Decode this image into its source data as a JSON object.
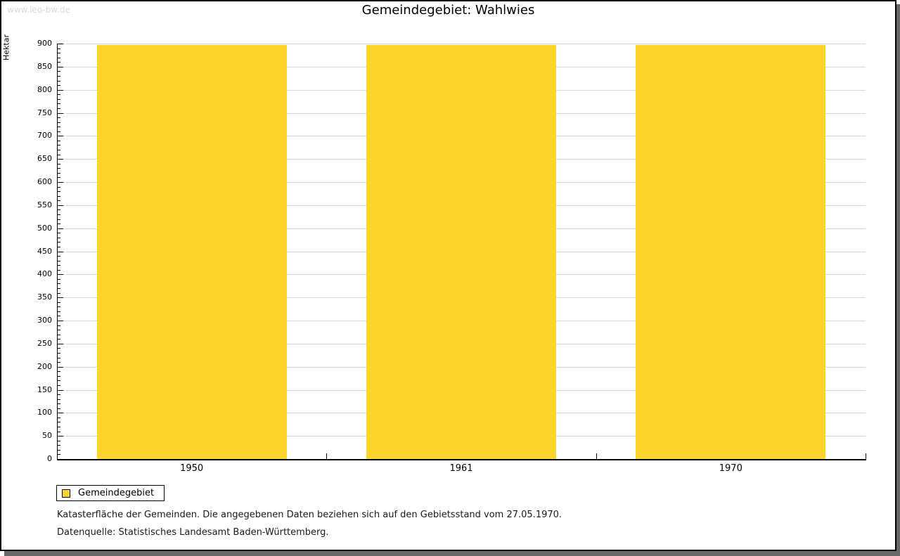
{
  "page": {
    "watermark": "www.leo-bw.de"
  },
  "chart_data": {
    "type": "bar",
    "title": "Gemeindegebiet: Wahlwies",
    "categories": [
      "1950",
      "1961",
      "1970"
    ],
    "series": [
      {
        "name": "Gemeindegebiet",
        "values": [
          897,
          897,
          897
        ]
      }
    ],
    "xlabel": "",
    "ylabel": "Hektar",
    "ylim": [
      0,
      900
    ],
    "ytick_major": 50,
    "ytick_minor": 10,
    "grid": true,
    "legend_position": "bottom-left"
  },
  "legend": {
    "label": "Gemeindegebiet"
  },
  "footnotes": {
    "line1": "Katasterfläche der Gemeinden. Die angegebenen Daten beziehen sich auf den Gebietsstand vom 27.05.1970.",
    "line2": "Datenquelle: Statistisches Landesamt Baden-Württemberg."
  },
  "colors": {
    "bar": "#fcd42a",
    "grid": "#d8d8d8",
    "axis": "#000000",
    "watermark": "#d9d9d9",
    "frame_shadow": "#686868"
  }
}
